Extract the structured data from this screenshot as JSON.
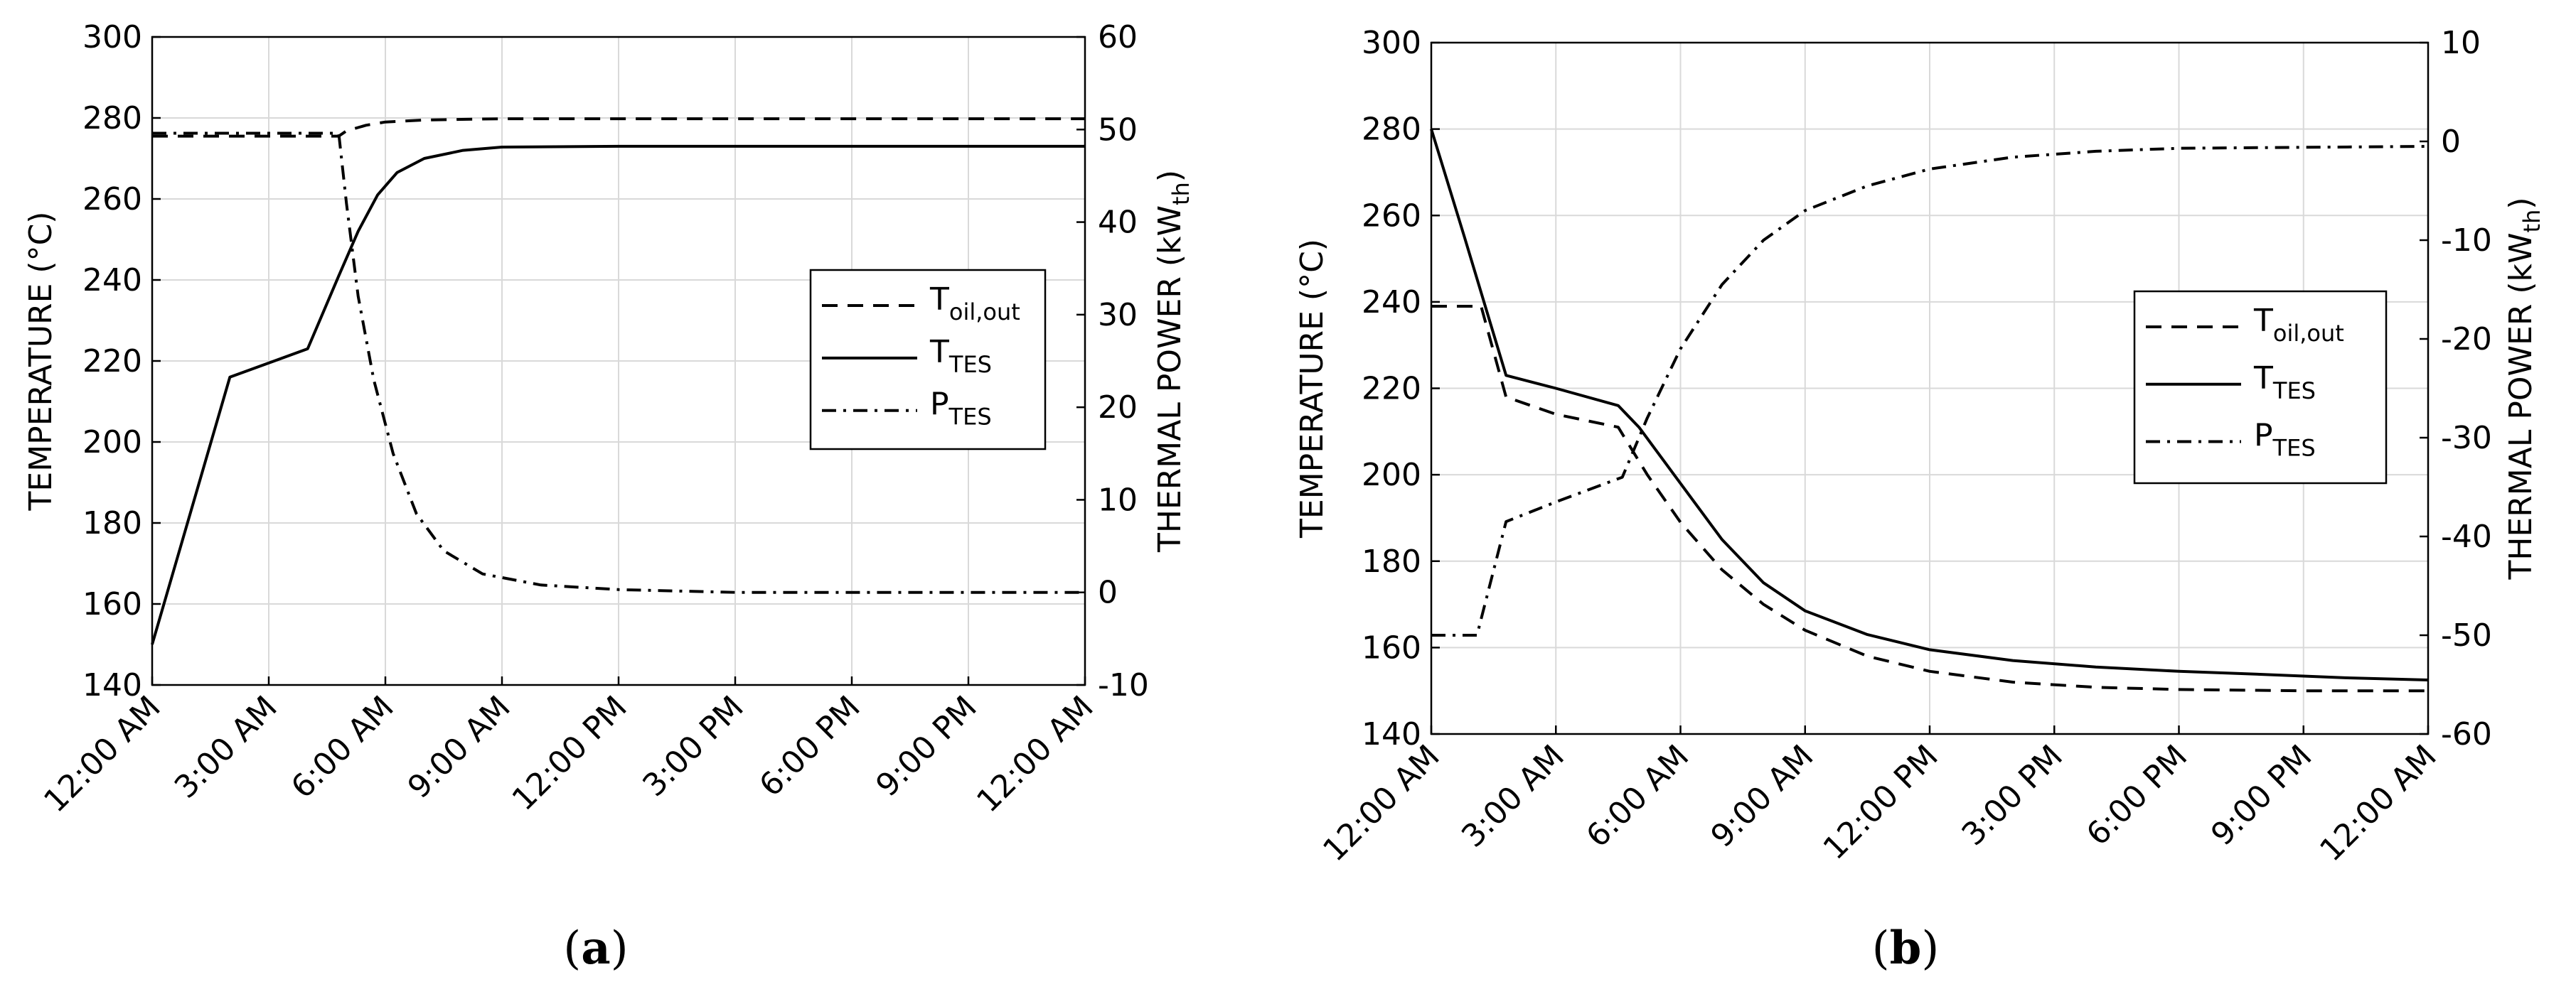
{
  "chart_data": [
    {
      "type": "line",
      "panel_label": "(a)",
      "panel_letter": "a",
      "x_ticks": [
        "12:00 AM",
        "3:00 AM",
        "6:00 AM",
        "9:00 AM",
        "12:00 PM",
        "3:00 PM",
        "6:00 PM",
        "9:00 PM",
        "12:00 AM"
      ],
      "xlim_hours": [
        0,
        24
      ],
      "ylabel_left": "TEMPERATURE (°C)",
      "ylim_left": [
        140,
        300
      ],
      "yticks_left": [
        140,
        160,
        180,
        200,
        220,
        240,
        260,
        280,
        300
      ],
      "ylabel_right": "THERMAL POWER (kW",
      "ylabel_right_sub": "th",
      "ylabel_right_close": ")",
      "ylim_right": [
        -10,
        60
      ],
      "yticks_right": [
        -10,
        0,
        10,
        20,
        30,
        40,
        50,
        60
      ],
      "ytick_labels_right": [
        "-10",
        "0",
        "10",
        "20",
        "30",
        "40",
        "50",
        "60"
      ],
      "grid": true,
      "legend_position": "middle-right",
      "series": [
        {
          "name": "T",
          "name_sub": "oil,out",
          "axis": "left",
          "style": "dashed",
          "points": [
            [
              0,
              275.5
            ],
            [
              2,
              275.5
            ],
            [
              4,
              275.5
            ],
            [
              4.8,
              275.5
            ],
            [
              5.0,
              276.8
            ],
            [
              5.5,
              278.2
            ],
            [
              6,
              279
            ],
            [
              7,
              279.5
            ],
            [
              9,
              279.8
            ],
            [
              24,
              279.8
            ]
          ]
        },
        {
          "name": "T",
          "name_sub": "TES",
          "axis": "left",
          "style": "solid",
          "points": [
            [
              0,
              150
            ],
            [
              2,
              216
            ],
            [
              4,
              223
            ],
            [
              4.8,
              241
            ],
            [
              5.3,
              252
            ],
            [
              5.8,
              261
            ],
            [
              6.3,
              266.5
            ],
            [
              7,
              270
            ],
            [
              8,
              272
            ],
            [
              9,
              272.8
            ],
            [
              12,
              273
            ],
            [
              24,
              273
            ]
          ]
        },
        {
          "name": "P",
          "name_sub": "TES",
          "axis": "right",
          "style": "dashdot",
          "points": [
            [
              0,
              49.6
            ],
            [
              4.8,
              49.6
            ],
            [
              5.0,
              42
            ],
            [
              5.3,
              32
            ],
            [
              5.7,
              23
            ],
            [
              6.2,
              15
            ],
            [
              6.8,
              8.5
            ],
            [
              7.5,
              4.5
            ],
            [
              8.5,
              2
            ],
            [
              10,
              0.8
            ],
            [
              12,
              0.3
            ],
            [
              15,
              0
            ],
            [
              24,
              0
            ]
          ]
        }
      ]
    },
    {
      "type": "line",
      "panel_label": "(b)",
      "panel_letter": "b",
      "x_ticks": [
        "12:00 AM",
        "3:00 AM",
        "6:00 AM",
        "9:00 AM",
        "12:00 PM",
        "3:00 PM",
        "6:00 PM",
        "9:00 PM",
        "12:00 AM"
      ],
      "xlim_hours": [
        0,
        24
      ],
      "ylabel_left": "TEMPERATURE (°C)",
      "ylim_left": [
        140,
        300
      ],
      "yticks_left": [
        140,
        160,
        180,
        200,
        220,
        240,
        260,
        280,
        300
      ],
      "ylabel_right": "THERMAL POWER (kW",
      "ylabel_right_sub": "th",
      "ylabel_right_close": ")",
      "ylim_right": [
        -60,
        10
      ],
      "yticks_right": [
        -60,
        -50,
        -40,
        -30,
        -20,
        -10,
        0,
        10
      ],
      "ytick_labels_right": [
        "-60",
        "-50",
        "-40",
        "-30",
        "-20",
        "-10",
        "0",
        "10"
      ],
      "grid": true,
      "legend_position": "middle-right",
      "series": [
        {
          "name": "T",
          "name_sub": "oil,out",
          "axis": "left",
          "style": "dashed",
          "points": [
            [
              0,
              239
            ],
            [
              1.2,
              239
            ],
            [
              1.8,
              218
            ],
            [
              3,
              214
            ],
            [
              4.5,
              211
            ],
            [
              5.2,
              200
            ],
            [
              6,
              189
            ],
            [
              7,
              178
            ],
            [
              8,
              170
            ],
            [
              9,
              164
            ],
            [
              10.5,
              158
            ],
            [
              12,
              154.5
            ],
            [
              14,
              152
            ],
            [
              16,
              150.8
            ],
            [
              18,
              150.3
            ],
            [
              21,
              150
            ],
            [
              24,
              150
            ]
          ]
        },
        {
          "name": "T",
          "name_sub": "TES",
          "axis": "left",
          "style": "solid",
          "points": [
            [
              0,
              280
            ],
            [
              0.8,
              255
            ],
            [
              1.8,
              223
            ],
            [
              3,
              220
            ],
            [
              4.5,
              216
            ],
            [
              5,
              211
            ],
            [
              6,
              198
            ],
            [
              7,
              185
            ],
            [
              8,
              175
            ],
            [
              9,
              168.5
            ],
            [
              10.5,
              163
            ],
            [
              12,
              159.5
            ],
            [
              14,
              157
            ],
            [
              16,
              155.5
            ],
            [
              18,
              154.5
            ],
            [
              20,
              153.8
            ],
            [
              22,
              153
            ],
            [
              24,
              152.5
            ]
          ]
        },
        {
          "name": "P",
          "name_sub": "TES",
          "axis": "right",
          "style": "dashdot",
          "points": [
            [
              0,
              -50
            ],
            [
              1.1,
              -50
            ],
            [
              1.8,
              -38.5
            ],
            [
              3,
              -36.5
            ],
            [
              4.6,
              -34
            ],
            [
              5.2,
              -28
            ],
            [
              6,
              -21
            ],
            [
              7,
              -14.5
            ],
            [
              8,
              -10
            ],
            [
              9,
              -7
            ],
            [
              10.5,
              -4.5
            ],
            [
              12,
              -2.8
            ],
            [
              14,
              -1.6
            ],
            [
              16,
              -1
            ],
            [
              18,
              -0.7
            ],
            [
              21,
              -0.6
            ],
            [
              24,
              -0.5
            ]
          ]
        }
      ]
    }
  ]
}
